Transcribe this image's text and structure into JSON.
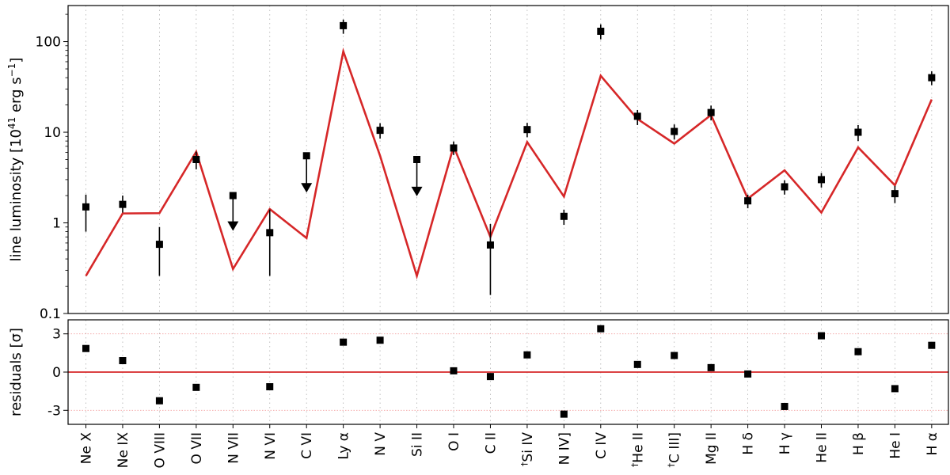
{
  "chart_data": [
    {
      "type": "scatter",
      "ylabel_main": "line luminosity [10",
      "ylabel_exp": "41",
      "ylabel_unit": " erg s",
      "ylabel_unit_exp": "−1",
      "ylabel_close": "]",
      "yscale": "log",
      "ylim": [
        0.1,
        250
      ],
      "yticks": [
        {
          "v": 0.1,
          "label": "0.1"
        },
        {
          "v": 1,
          "label": "1"
        },
        {
          "v": 10,
          "label": "10"
        },
        {
          "v": 100,
          "label": "100"
        }
      ],
      "grid_x": "dotted",
      "categories": [
        "Ne X",
        "Ne IX",
        "O VIII",
        "O VII",
        "N VII",
        "N VI",
        "C VI",
        "Ly α",
        "N V",
        "Si II",
        "O I",
        "C II",
        "Si IV",
        "N IV]",
        "C IV",
        "He II",
        "C III]",
        "Mg II",
        "H δ",
        "H γ",
        "He II",
        "H β",
        "He I",
        "H α"
      ],
      "category_labels": [
        {
          "pre": "",
          "main": "Ne X"
        },
        {
          "pre": "",
          "main": "Ne IX"
        },
        {
          "pre": "",
          "main": "O VIII"
        },
        {
          "pre": "",
          "main": "O VII"
        },
        {
          "pre": "",
          "main": "N VII"
        },
        {
          "pre": "",
          "main": "N VI"
        },
        {
          "pre": "",
          "main": "C VI"
        },
        {
          "pre": "",
          "main": "Ly α"
        },
        {
          "pre": "",
          "main": "N V"
        },
        {
          "pre": "",
          "main": "Si II"
        },
        {
          "pre": "",
          "main": "O I"
        },
        {
          "pre": "",
          "main": "C II"
        },
        {
          "pre": "†",
          "main": "Si IV"
        },
        {
          "pre": "",
          "main": "N IV]"
        },
        {
          "pre": "",
          "main": "C IV"
        },
        {
          "pre": "†",
          "main": "He II"
        },
        {
          "pre": "†",
          "main": "C III]"
        },
        {
          "pre": "",
          "main": "Mg II"
        },
        {
          "pre": "",
          "main": "H δ"
        },
        {
          "pre": "",
          "main": "H γ"
        },
        {
          "pre": "",
          "main": "He II"
        },
        {
          "pre": "",
          "main": "H β"
        },
        {
          "pre": "",
          "main": "He I"
        },
        {
          "pre": "",
          "main": "H α"
        }
      ],
      "observed": [
        {
          "y": 1.5,
          "lo": 0.8,
          "hi": 2.05
        },
        {
          "y": 1.6,
          "lo": 1.3,
          "hi": 2.0
        },
        {
          "y": 0.58,
          "lo": 0.26,
          "hi": 0.9
        },
        {
          "y": 5.0,
          "lo": 3.9,
          "hi": 6.1
        },
        {
          "y": 2.0,
          "upper_limit": true,
          "arrow_to": 0.85
        },
        {
          "y": 0.78,
          "lo": 0.26,
          "hi": 1.4
        },
        {
          "y": 5.5,
          "upper_limit": true,
          "arrow_to": 2.25
        },
        {
          "y": 150,
          "lo": 122,
          "hi": 175
        },
        {
          "y": 10.5,
          "lo": 8.5,
          "hi": 12.6
        },
        {
          "y": 5.0,
          "upper_limit": true,
          "arrow_to": 2.05
        },
        {
          "y": 6.7,
          "lo": 5.6,
          "hi": 7.9
        },
        {
          "y": 0.57,
          "lo": 0.16,
          "hi": 0.97
        },
        {
          "y": 10.7,
          "lo": 8.8,
          "hi": 12.7
        },
        {
          "y": 1.18,
          "lo": 0.95,
          "hi": 1.4
        },
        {
          "y": 130,
          "lo": 106,
          "hi": 155
        },
        {
          "y": 15.0,
          "lo": 12.0,
          "hi": 17.6
        },
        {
          "y": 10.2,
          "lo": 8.3,
          "hi": 12.2
        },
        {
          "y": 16.5,
          "lo": 13.5,
          "hi": 19.7
        },
        {
          "y": 1.75,
          "lo": 1.45,
          "hi": 2.05
        },
        {
          "y": 2.5,
          "lo": 2.05,
          "hi": 2.95
        },
        {
          "y": 3.0,
          "lo": 2.45,
          "hi": 3.55
        },
        {
          "y": 10.0,
          "lo": 8.0,
          "hi": 12.0
        },
        {
          "y": 2.1,
          "lo": 1.65,
          "hi": 2.55
        },
        {
          "y": 40.0,
          "lo": 33,
          "hi": 47
        }
      ],
      "model": [
        0.26,
        1.27,
        1.28,
        6.1,
        0.31,
        1.42,
        0.68,
        78,
        5.5,
        0.26,
        7.0,
        0.7,
        7.8,
        1.95,
        42,
        14,
        7.5,
        15.5,
        1.85,
        3.8,
        1.3,
        6.8,
        2.6,
        23
      ],
      "model_color": "#d62728",
      "marker_color": "#000000"
    },
    {
      "type": "scatter",
      "ylabel": "residuals [σ]",
      "ylim": [
        -4.1,
        4.1
      ],
      "yticks": [
        {
          "v": 3,
          "label": "3"
        },
        {
          "v": 0,
          "label": "0"
        },
        {
          "v": -3,
          "label": "-3"
        }
      ],
      "zero_line_color": "#d62728",
      "threshold_lines": [
        3,
        -3
      ],
      "threshold_color": "#f4a0a0",
      "values": [
        1.85,
        0.9,
        -2.25,
        -1.2,
        null,
        -1.15,
        null,
        2.35,
        2.5,
        null,
        0.1,
        -0.35,
        1.35,
        -3.3,
        3.4,
        0.6,
        1.3,
        0.35,
        -0.15,
        -2.7,
        2.85,
        1.6,
        -1.3,
        2.1
      ]
    }
  ]
}
